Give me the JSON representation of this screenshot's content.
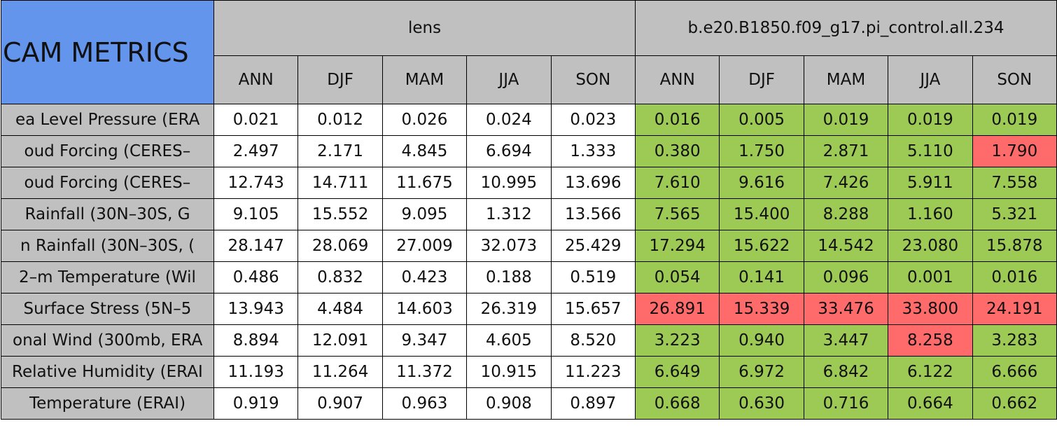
{
  "table": {
    "title": "CAM METRICS",
    "groups": [
      {
        "name": "lens",
        "seasons": [
          "ANN",
          "DJF",
          "MAM",
          "JJA",
          "SON"
        ]
      },
      {
        "name": "b.e20.B1850.f09_g17.pi_control.all.234",
        "seasons": [
          "ANN",
          "DJF",
          "MAM",
          "JJA",
          "SON"
        ]
      }
    ],
    "colors": {
      "title": "#6495ed",
      "header": "#c0c0c0",
      "plain": "#ffffff",
      "better": "#9dc955",
      "worse": "#ff6b6b"
    },
    "rows": [
      {
        "label": "ea Level Pressure (ERA",
        "cells": [
          "0.021",
          "0.012",
          "0.026",
          "0.024",
          "0.023",
          "0.016",
          "0.005",
          "0.019",
          "0.019",
          "0.019"
        ],
        "fills": [
          "plain",
          "plain",
          "plain",
          "plain",
          "plain",
          "better",
          "better",
          "better",
          "better",
          "better"
        ]
      },
      {
        "label": "oud Forcing (CERES–",
        "cells": [
          "2.497",
          "2.171",
          "4.845",
          "6.694",
          "1.333",
          "0.380",
          "1.750",
          "2.871",
          "5.110",
          "1.790"
        ],
        "fills": [
          "plain",
          "plain",
          "plain",
          "plain",
          "plain",
          "better",
          "better",
          "better",
          "better",
          "worse"
        ]
      },
      {
        "label": "oud Forcing (CERES–",
        "cells": [
          "12.743",
          "14.711",
          "11.675",
          "10.995",
          "13.696",
          "7.610",
          "9.616",
          "7.426",
          "5.911",
          "7.558"
        ],
        "fills": [
          "plain",
          "plain",
          "plain",
          "plain",
          "plain",
          "better",
          "better",
          "better",
          "better",
          "better"
        ]
      },
      {
        "label": "Rainfall (30N–30S, G",
        "cells": [
          "9.105",
          "15.552",
          "9.095",
          "1.312",
          "13.566",
          "7.565",
          "15.400",
          "8.288",
          "1.160",
          "5.321"
        ],
        "fills": [
          "plain",
          "plain",
          "plain",
          "plain",
          "plain",
          "better",
          "better",
          "better",
          "better",
          "better"
        ]
      },
      {
        "label": "n Rainfall (30N–30S, (",
        "cells": [
          "28.147",
          "28.069",
          "27.009",
          "32.073",
          "25.429",
          "17.294",
          "15.622",
          "14.542",
          "23.080",
          "15.878"
        ],
        "fills": [
          "plain",
          "plain",
          "plain",
          "plain",
          "plain",
          "better",
          "better",
          "better",
          "better",
          "better"
        ]
      },
      {
        "label": "2–m Temperature (Wil",
        "cells": [
          "0.486",
          "0.832",
          "0.423",
          "0.188",
          "0.519",
          "0.054",
          "0.141",
          "0.096",
          "0.001",
          "0.016"
        ],
        "fills": [
          "plain",
          "plain",
          "plain",
          "plain",
          "plain",
          "better",
          "better",
          "better",
          "better",
          "better"
        ]
      },
      {
        "label": "Surface Stress (5N–5",
        "cells": [
          "13.943",
          "4.484",
          "14.603",
          "26.319",
          "15.657",
          "26.891",
          "15.339",
          "33.476",
          "33.800",
          "24.191"
        ],
        "fills": [
          "plain",
          "plain",
          "plain",
          "plain",
          "plain",
          "worse",
          "worse",
          "worse",
          "worse",
          "worse"
        ]
      },
      {
        "label": "onal Wind (300mb, ERA",
        "cells": [
          "8.894",
          "12.091",
          "9.347",
          "4.605",
          "8.520",
          "3.223",
          "0.940",
          "3.447",
          "8.258",
          "3.283"
        ],
        "fills": [
          "plain",
          "plain",
          "plain",
          "plain",
          "plain",
          "better",
          "better",
          "better",
          "worse",
          "better"
        ]
      },
      {
        "label": "Relative Humidity (ERAI",
        "cells": [
          "11.193",
          "11.264",
          "11.372",
          "10.915",
          "11.223",
          "6.649",
          "6.972",
          "6.842",
          "6.122",
          "6.666"
        ],
        "fills": [
          "plain",
          "plain",
          "plain",
          "plain",
          "plain",
          "better",
          "better",
          "better",
          "better",
          "better"
        ]
      },
      {
        "label": "Temperature (ERAI)",
        "cells": [
          "0.919",
          "0.907",
          "0.963",
          "0.908",
          "0.897",
          "0.668",
          "0.630",
          "0.716",
          "0.664",
          "0.662"
        ],
        "fills": [
          "plain",
          "plain",
          "plain",
          "plain",
          "plain",
          "better",
          "better",
          "better",
          "better",
          "better"
        ]
      }
    ]
  }
}
